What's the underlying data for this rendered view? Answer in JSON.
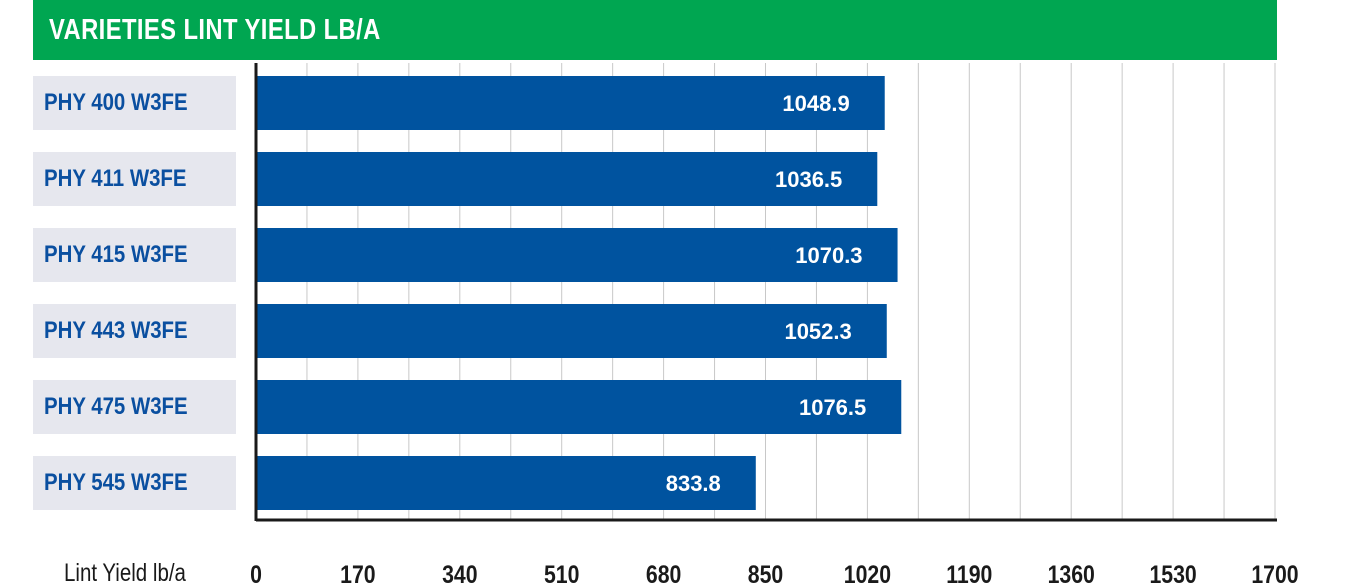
{
  "title": "VARIETIES LINT YIELD LB/A",
  "colors": {
    "title_bg": "#00a651",
    "bar": "#00539f",
    "label_bg": "#e6e7ee",
    "label_text": "#0a4fa0"
  },
  "chart_data": {
    "type": "bar",
    "orientation": "horizontal",
    "title": "VARIETIES LINT YIELD LB/A",
    "xlabel": "Lint Yield lb/a",
    "ylabel": "",
    "categories": [
      "PHY 400 W3FE",
      "PHY 411 W3FE",
      "PHY 415 W3FE",
      "PHY 443 W3FE",
      "PHY 475 W3FE",
      "PHY 545 W3FE"
    ],
    "values": [
      1048.9,
      1036.5,
      1070.3,
      1052.3,
      1076.5,
      833.8
    ],
    "value_labels": [
      "1048.9",
      "1036.5",
      "1070.3",
      "1052.3",
      "1076.5",
      "833.8"
    ],
    "xlim": [
      0,
      1700
    ],
    "ticks": [
      "0",
      "170",
      "340",
      "510",
      "680",
      "850",
      "1020",
      "1190",
      "1360",
      "1530",
      "1700"
    ],
    "grid": true,
    "legend": "none"
  }
}
